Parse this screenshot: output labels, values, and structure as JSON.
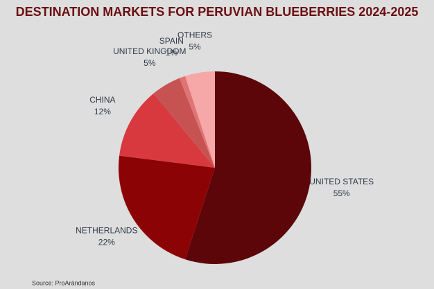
{
  "chart_data": {
    "type": "pie",
    "title": "DESTINATION MARKETS FOR PERUVIAN BLUEBERRIES 2024-2025",
    "categories": [
      "UNITED STATES",
      "NETHERLANDS",
      "CHINA",
      "UNITED KINGDOM",
      "SPAIN",
      "OTHERS"
    ],
    "values": [
      55,
      22,
      12,
      5,
      1,
      5
    ],
    "value_labels": [
      "55%",
      "22%",
      "12%",
      "5%",
      "1%",
      "5%"
    ],
    "colors": [
      "#5c0609",
      "#8c0306",
      "#d8393f",
      "#c75252",
      "#e07474",
      "#f6a7a7"
    ],
    "source": "Source: ProArándanos"
  }
}
